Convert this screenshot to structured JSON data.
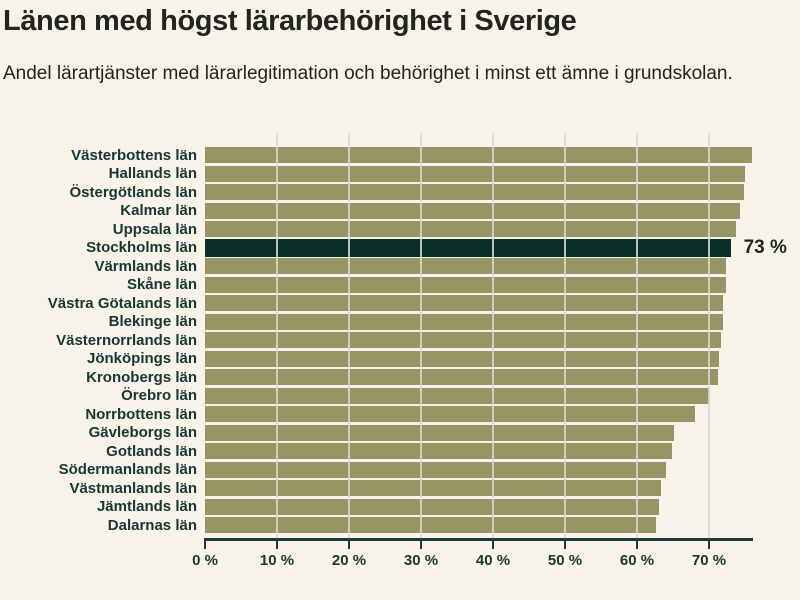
{
  "header": {
    "title": "Länen med högst lärarbehörighet i Sverige",
    "subtitle": "Andel lärartjänster med lärarlegitimation och behörighet i minst ett ämne i grundskolan."
  },
  "chart_data": {
    "type": "bar",
    "orientation": "horizontal",
    "title": "Länen med högst lärarbehörighet i Sverige",
    "subtitle": "Andel lärartjänster med lärarlegitimation och behörighet i minst ett ämne i grundskolan.",
    "categories": [
      "Västerbottens län",
      "Hallands län",
      "Östergötlands län",
      "Kalmar län",
      "Uppsala län",
      "Stockholms län",
      "Värmlands län",
      "Skåne län",
      "Västra Götalands län",
      "Blekinge län",
      "Västernorrlands län",
      "Jönköpings län",
      "Kronobergs län",
      "Örebro län",
      "Norrbottens län",
      "Gävleborgs län",
      "Gotlands län",
      "Södermanlands län",
      "Västmanlands län",
      "Jämtlands län",
      "Dalarnas län"
    ],
    "values": [
      76.0,
      75.0,
      74.9,
      74.3,
      73.8,
      73.0,
      72.4,
      72.3,
      72.0,
      71.9,
      71.7,
      71.4,
      71.2,
      70.0,
      68.1,
      65.1,
      64.9,
      64.0,
      63.3,
      63.0,
      62.7
    ],
    "highlight": {
      "category": "Stockholms län",
      "index": 5,
      "value": 73,
      "label": "73 %"
    },
    "xticks": [
      "0 %",
      "10 %",
      "20 %",
      "30 %",
      "40 %",
      "50 %",
      "60 %",
      "70 %"
    ],
    "xtick_values": [
      0,
      10,
      20,
      30,
      40,
      50,
      60,
      70
    ],
    "xlim": [
      0,
      76.1
    ],
    "xlabel": "",
    "ylabel": "",
    "grid": "vertical",
    "legend": "none",
    "colors": {
      "background": "#f7f3e8",
      "bar": "#999466",
      "highlight": "#0c2e29",
      "gridline": "rgba(219,216,204,0.85)",
      "axis": "#1e3a33",
      "label": "#17372f",
      "title": "#22251f"
    }
  }
}
